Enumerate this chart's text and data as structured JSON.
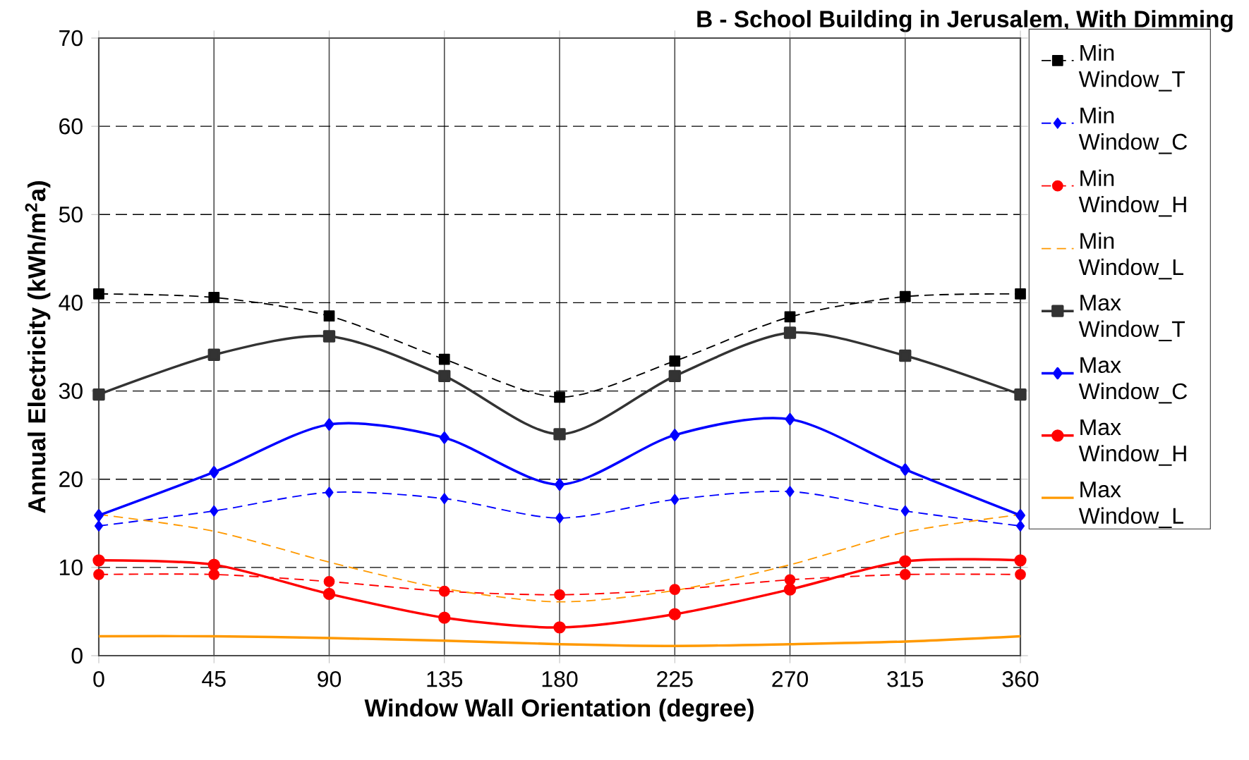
{
  "chart_data": {
    "type": "line",
    "title": "B - School Building in Jerusalem, With Dimming",
    "xlabel": "Window Wall Orientation (degree)",
    "ylabel": "Annual Electricity (kWh/m$^{2}$a)",
    "x": [
      0,
      45,
      90,
      135,
      180,
      225,
      270,
      315,
      360
    ],
    "xlim": [
      0,
      360
    ],
    "xticks": [
      0,
      45,
      90,
      135,
      180,
      225,
      270,
      315,
      360
    ],
    "ylim": [
      0,
      70
    ],
    "yticks": [
      0,
      10,
      20,
      30,
      40,
      50,
      60,
      70
    ],
    "grid": true,
    "legend": "right",
    "series": [
      {
        "name": "Min Window_T",
        "color": "#000000",
        "marker": "square",
        "line_style": "dashed",
        "values": [
          41.0,
          40.6,
          38.5,
          33.6,
          29.3,
          33.4,
          38.4,
          40.7,
          41.0
        ]
      },
      {
        "name": "Min Window_C",
        "color": "#0000ff",
        "marker": "diamond",
        "line_style": "dashed",
        "values": [
          14.7,
          16.4,
          18.5,
          17.8,
          15.6,
          17.7,
          18.6,
          16.4,
          14.7
        ]
      },
      {
        "name": "Min Window_H",
        "color": "#ff0000",
        "marker": "circle",
        "line_style": "dashed",
        "values": [
          9.2,
          9.2,
          8.4,
          7.3,
          6.9,
          7.5,
          8.6,
          9.2,
          9.2
        ]
      },
      {
        "name": "Min Window_L",
        "color": "#ff9900",
        "marker": "none",
        "line_style": "dashed",
        "values": [
          16.0,
          14.1,
          10.6,
          7.6,
          6.1,
          7.4,
          10.3,
          14.0,
          16.0
        ]
      },
      {
        "name": "Max Window_T",
        "color": "#333333",
        "marker": "square",
        "line_style": "solid",
        "values": [
          29.6,
          34.1,
          36.2,
          31.7,
          25.1,
          31.7,
          36.6,
          34.0,
          29.6
        ]
      },
      {
        "name": "Max Window_C",
        "color": "#0000ff",
        "marker": "diamond",
        "line_style": "solid",
        "values": [
          15.9,
          20.8,
          26.2,
          24.7,
          19.4,
          25.0,
          26.8,
          21.1,
          15.9
        ]
      },
      {
        "name": "Max Window_H",
        "color": "#ff0000",
        "marker": "circle",
        "line_style": "solid",
        "values": [
          10.8,
          10.3,
          7.0,
          4.3,
          3.2,
          4.7,
          7.5,
          10.7,
          10.8
        ]
      },
      {
        "name": "Max Window_L",
        "color": "#ff9900",
        "marker": "none",
        "line_style": "solid",
        "values": [
          2.2,
          2.2,
          2.0,
          1.7,
          1.3,
          1.1,
          1.3,
          1.6,
          2.2
        ]
      }
    ]
  }
}
